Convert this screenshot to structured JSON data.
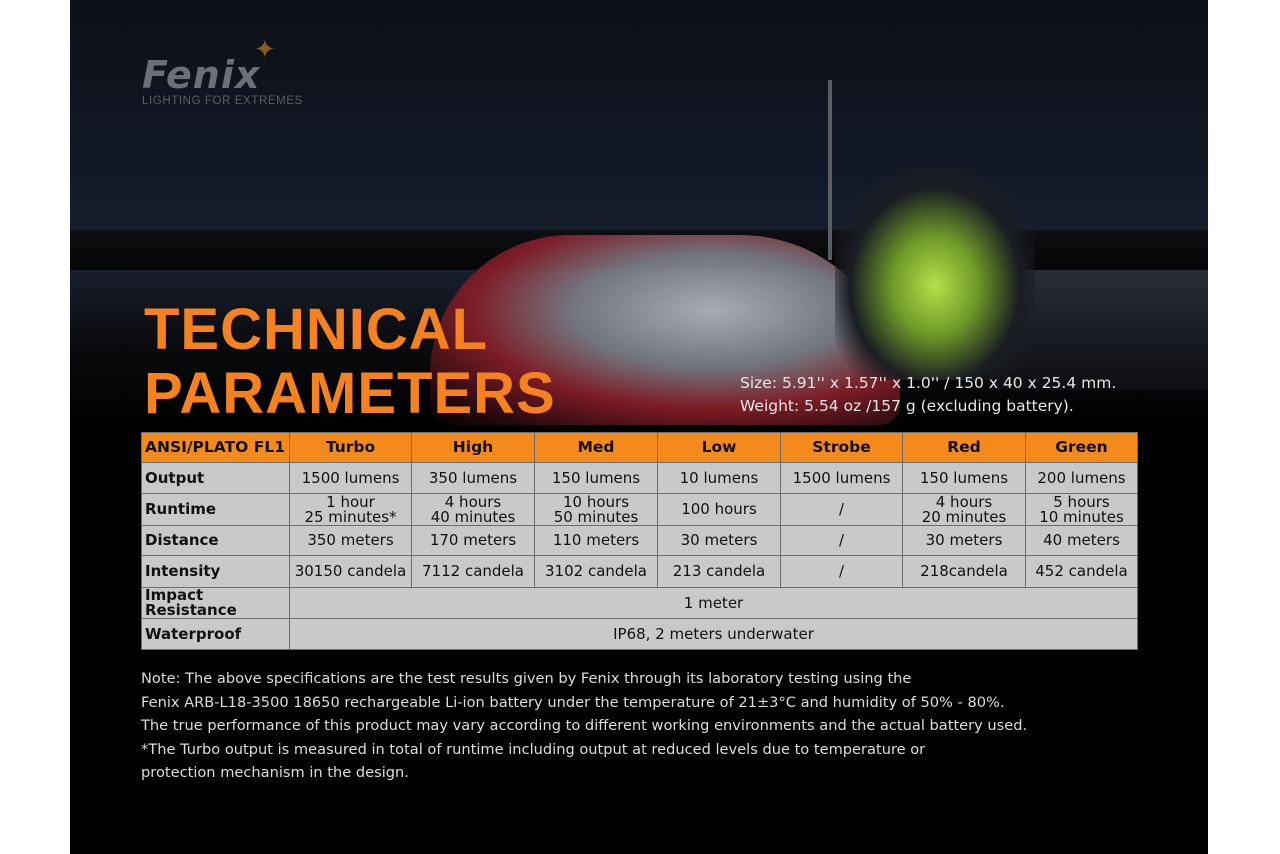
{
  "brand": {
    "name": "Fenix",
    "tagline": "LIGHTING FOR EXTREMES"
  },
  "title": [
    "TECHNICAL",
    "PARAMETERS"
  ],
  "specs": {
    "size": "Size: 5.91'' x 1.57'' x 1.0'' / 150 x 40 x 25.4 mm.",
    "weight": "Weight: 5.54 oz /157 g (excluding battery)."
  },
  "table": {
    "headers": [
      "ANSI/PLATO  FL1",
      "Turbo",
      "High",
      "Med",
      "Low",
      "Strobe",
      "Red",
      "Green"
    ],
    "rows": [
      {
        "label": "Output",
        "cells": [
          "1500 lumens",
          "350 lumens",
          "150 lumens",
          "10 lumens",
          "1500 lumens",
          "150 lumens",
          "200 lumens"
        ]
      },
      {
        "label": "Runtime",
        "cells": [
          [
            "1 hour",
            "25 minutes*"
          ],
          [
            "4 hours",
            "40 minutes"
          ],
          [
            "10 hours",
            "50 minutes"
          ],
          [
            "100 hours"
          ],
          [
            "/"
          ],
          [
            "4 hours",
            "20 minutes"
          ],
          [
            "5 hours",
            "10 minutes"
          ]
        ]
      },
      {
        "label": "Distance",
        "cells": [
          "350 meters",
          "170 meters",
          "110 meters",
          "30 meters",
          "/",
          "30 meters",
          "40 meters"
        ]
      },
      {
        "label": "Intensity",
        "cells": [
          "30150 candela",
          "7112 candela",
          "3102 candela",
          "213 candela",
          "/",
          "218candela",
          "452 candela"
        ]
      }
    ],
    "impact": {
      "label": "Impact Resistance",
      "value": "1 meter"
    },
    "waterproof": {
      "label": "Waterproof",
      "value": "IP68, 2 meters underwater"
    }
  },
  "note": [
    "Note: The above specifications are the test results given by Fenix through its laboratory testing using the",
    "Fenix ARB-L18-3500 18650 rechargeable Li-ion battery under the temperature of 21±3°C and humidity of 50% - 80%.",
    "The true performance of this product may vary according to different working environments and the actual battery used.",
    "*The Turbo output is measured in total of runtime including output at reduced levels due to temperature or",
    "protection mechanism in the design."
  ],
  "colors": {
    "accent": "#f58a1c",
    "title": "#f5821f",
    "cell": "#c9c9c9"
  }
}
